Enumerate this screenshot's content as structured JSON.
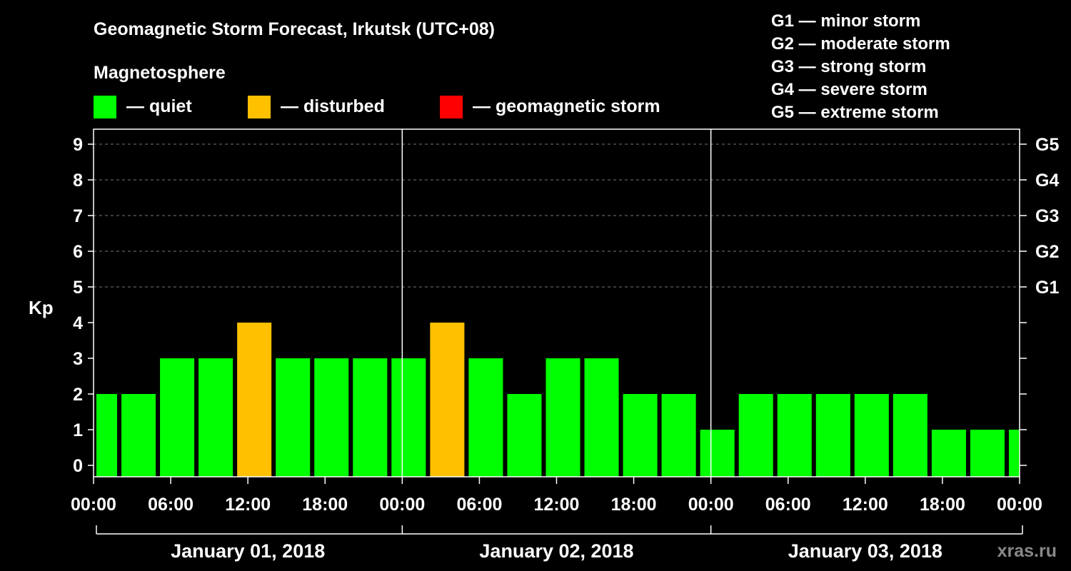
{
  "chart_data": {
    "type": "bar",
    "title": "Geomagnetic Storm Forecast, Irkutsk (UTC+08)",
    "legend_title": "Magnetosphere",
    "legend": [
      {
        "label": "— quiet",
        "color": "#00ff00",
        "status": "quiet"
      },
      {
        "label": "— disturbed",
        "color": "#ffc000",
        "status": "disturbed"
      },
      {
        "label": "— geomagnetic storm",
        "color": "#ff0000",
        "status": "storm"
      }
    ],
    "storm_scale": [
      "G1 — minor storm",
      "G2 — moderate storm",
      "G3 — strong storm",
      "G4 — severe storm",
      "G5 — extreme storm"
    ],
    "ylabel": "Kp",
    "ylim": [
      0,
      9
    ],
    "yticks": [
      "0",
      "1",
      "2",
      "3",
      "4",
      "5",
      "6",
      "7",
      "8",
      "9"
    ],
    "right_ticks": [
      {
        "kp": 5,
        "label": "G1"
      },
      {
        "kp": 6,
        "label": "G2"
      },
      {
        "kp": 7,
        "label": "G3"
      },
      {
        "kp": 8,
        "label": "G4"
      },
      {
        "kp": 9,
        "label": "G5"
      }
    ],
    "x_hours_range": [
      0,
      72
    ],
    "xticks": [
      {
        "h": 0,
        "label": "00:00"
      },
      {
        "h": 6,
        "label": "06:00"
      },
      {
        "h": 12,
        "label": "12:00"
      },
      {
        "h": 18,
        "label": "18:00"
      },
      {
        "h": 24,
        "label": "00:00"
      },
      {
        "h": 30,
        "label": "06:00"
      },
      {
        "h": 36,
        "label": "12:00"
      },
      {
        "h": 42,
        "label": "18:00"
      },
      {
        "h": 48,
        "label": "00:00"
      },
      {
        "h": 54,
        "label": "06:00"
      },
      {
        "h": 60,
        "label": "12:00"
      },
      {
        "h": 66,
        "label": "18:00"
      },
      {
        "h": 72,
        "label": "00:00"
      }
    ],
    "days": [
      {
        "label": "January 01, 2018",
        "start_h": 0,
        "end_h": 24
      },
      {
        "label": "January 02, 2018",
        "start_h": 24,
        "end_h": 48
      },
      {
        "label": "January 03, 2018",
        "start_h": 48,
        "end_h": 72
      }
    ],
    "bars": [
      {
        "start_h": 0,
        "end_h": 2,
        "kp": 2,
        "status": "quiet"
      },
      {
        "start_h": 2,
        "end_h": 5,
        "kp": 2,
        "status": "quiet"
      },
      {
        "start_h": 5,
        "end_h": 8,
        "kp": 3,
        "status": "quiet"
      },
      {
        "start_h": 8,
        "end_h": 11,
        "kp": 3,
        "status": "quiet"
      },
      {
        "start_h": 11,
        "end_h": 14,
        "kp": 4,
        "status": "disturbed"
      },
      {
        "start_h": 14,
        "end_h": 17,
        "kp": 3,
        "status": "quiet"
      },
      {
        "start_h": 17,
        "end_h": 20,
        "kp": 3,
        "status": "quiet"
      },
      {
        "start_h": 20,
        "end_h": 23,
        "kp": 3,
        "status": "quiet"
      },
      {
        "start_h": 23,
        "end_h": 26,
        "kp": 3,
        "status": "quiet"
      },
      {
        "start_h": 26,
        "end_h": 29,
        "kp": 4,
        "status": "disturbed"
      },
      {
        "start_h": 29,
        "end_h": 32,
        "kp": 3,
        "status": "quiet"
      },
      {
        "start_h": 32,
        "end_h": 35,
        "kp": 2,
        "status": "quiet"
      },
      {
        "start_h": 35,
        "end_h": 38,
        "kp": 3,
        "status": "quiet"
      },
      {
        "start_h": 38,
        "end_h": 41,
        "kp": 3,
        "status": "quiet"
      },
      {
        "start_h": 41,
        "end_h": 44,
        "kp": 2,
        "status": "quiet"
      },
      {
        "start_h": 44,
        "end_h": 47,
        "kp": 2,
        "status": "quiet"
      },
      {
        "start_h": 47,
        "end_h": 50,
        "kp": 1,
        "status": "quiet"
      },
      {
        "start_h": 50,
        "end_h": 53,
        "kp": 2,
        "status": "quiet"
      },
      {
        "start_h": 53,
        "end_h": 56,
        "kp": 2,
        "status": "quiet"
      },
      {
        "start_h": 56,
        "end_h": 59,
        "kp": 2,
        "status": "quiet"
      },
      {
        "start_h": 59,
        "end_h": 62,
        "kp": 2,
        "status": "quiet"
      },
      {
        "start_h": 62,
        "end_h": 65,
        "kp": 2,
        "status": "quiet"
      },
      {
        "start_h": 65,
        "end_h": 68,
        "kp": 1,
        "status": "quiet"
      },
      {
        "start_h": 68,
        "end_h": 71,
        "kp": 1,
        "status": "quiet"
      },
      {
        "start_h": 71,
        "end_h": 72,
        "kp": 1,
        "status": "quiet"
      }
    ],
    "watermark": "xras.ru"
  }
}
